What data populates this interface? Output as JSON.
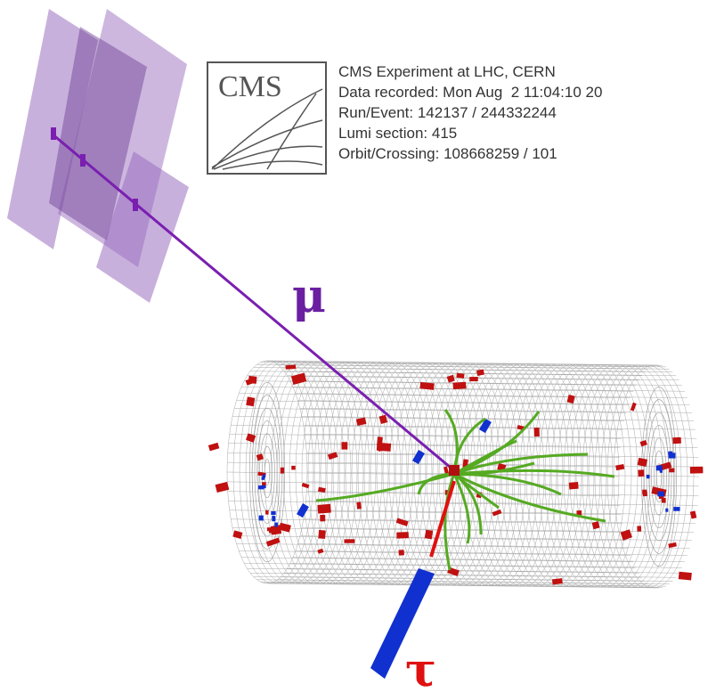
{
  "logo": "CMS",
  "info": [
    "CMS Experiment at LHC, CERN",
    "Data recorded: Mon Aug  2 11:04:10 20",
    "Run/Event: 142137 / 244332244",
    "Lumi section: 415",
    "Orbit/Crossing: 108668259 / 101"
  ],
  "labels": {
    "muon": "μ",
    "tau": "τ"
  }
}
